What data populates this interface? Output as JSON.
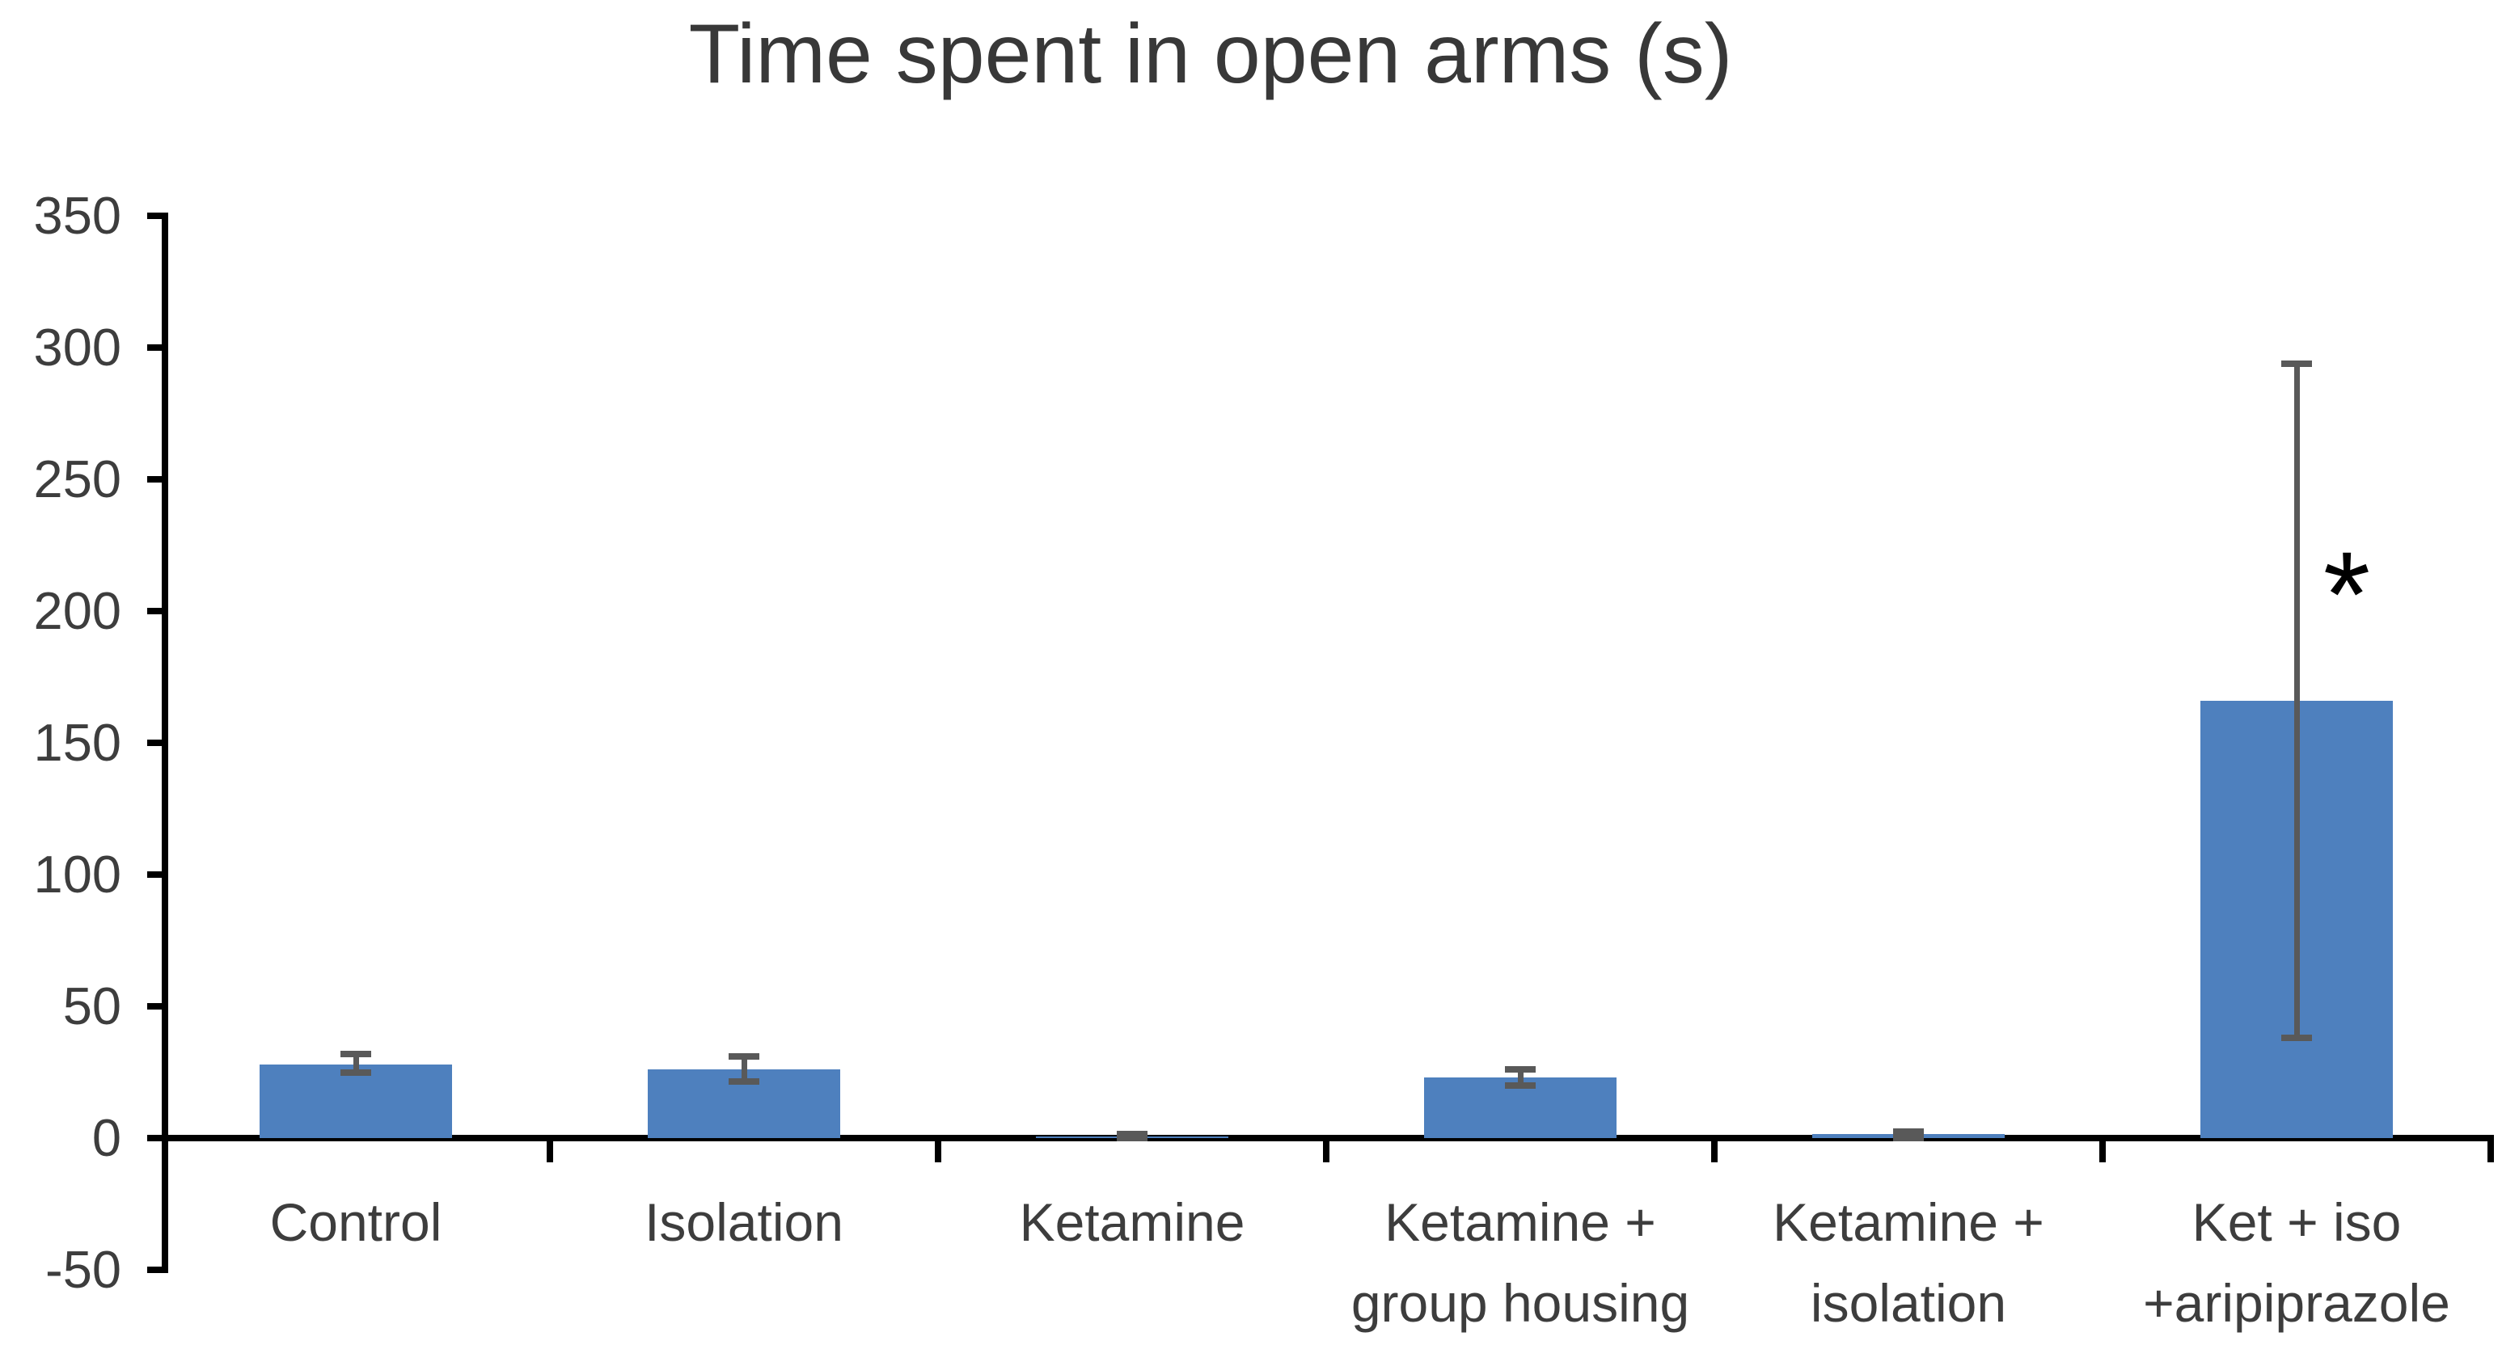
{
  "chart_data": {
    "type": "bar",
    "title": "Time spent in open arms (s)",
    "categories": [
      "Control",
      "Isolation",
      "Ketamine",
      "Ketamine + group housing",
      "Ketamine + isolation",
      "Ket + iso +aripiprazole"
    ],
    "category_label_lines": [
      [
        "Control"
      ],
      [
        "Isolation"
      ],
      [
        "Ketamine"
      ],
      [
        "Ketamine +",
        "group housing"
      ],
      [
        "Ketamine +",
        "isolation"
      ],
      [
        "Ket + iso",
        "+aripiprazole"
      ]
    ],
    "values": [
      28,
      26,
      0.5,
      23,
      1.5,
      166
    ],
    "error_top_values": [
      32,
      31,
      1.5,
      26,
      2.5,
      294
    ],
    "error_bottom_values": [
      25,
      21.5,
      0,
      20,
      0,
      38
    ],
    "ylim": [
      -50,
      350
    ],
    "ytick_step": 50,
    "ytick_labels": [
      "350",
      "300",
      "250",
      "200",
      "150",
      "100",
      "50",
      "0",
      "-50"
    ],
    "xlabel": "",
    "ylabel": "",
    "grid": false,
    "legend": false,
    "annotation": {
      "symbol": "*",
      "category": "Ket + iso +aripiprazole",
      "meaning": "significance marker"
    },
    "colors": {
      "bar_fill": "#4E80BE",
      "error_bar": "#595959",
      "axis": "#000000",
      "text": "#3d3d3d",
      "title_text": "#383838"
    }
  }
}
